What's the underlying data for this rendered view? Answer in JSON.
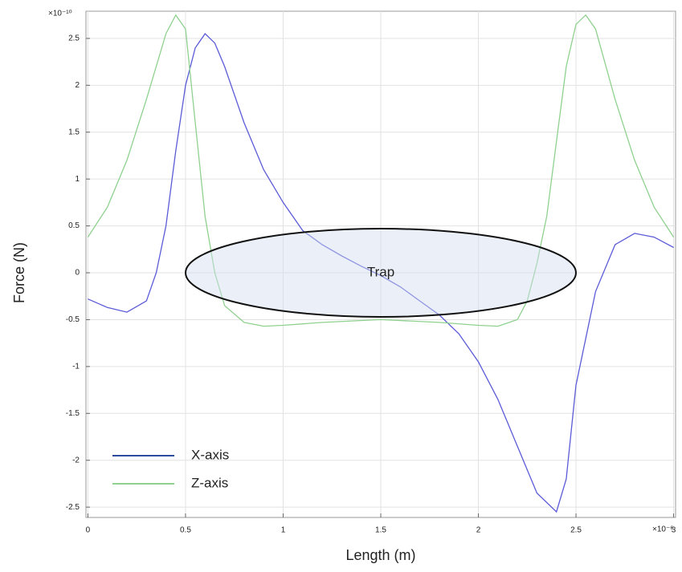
{
  "chart_data": {
    "type": "line",
    "y_label": "Force (N)",
    "x_label": "Length (m)",
    "y_multiplier": "×10⁻¹⁰",
    "x_multiplier": "×10⁻⁶",
    "xlim": [
      -0.01,
      3.01
    ],
    "ylim": [
      -2.61,
      2.79
    ],
    "xticks": [
      0,
      0.5,
      1,
      1.5,
      2,
      2.5,
      3
    ],
    "yticks": [
      -2.5,
      -2,
      -1.5,
      -1,
      -0.5,
      0,
      0.5,
      1,
      1.5,
      2,
      2.5
    ],
    "grid": true,
    "legend": "lower left",
    "annotation": {
      "text": "Trap",
      "x": 1.5,
      "y": 0
    },
    "series": [
      {
        "name": "X-axis",
        "color": "#5b5bd8",
        "x": [
          0,
          0.1,
          0.2,
          0.3,
          0.35,
          0.4,
          0.45,
          0.5,
          0.55,
          0.6,
          0.65,
          0.7,
          0.8,
          0.9,
          1.0,
          1.1,
          1.2,
          1.3,
          1.4,
          1.5,
          1.6,
          1.7,
          1.8,
          1.9,
          2.0,
          2.1,
          2.2,
          2.3,
          2.4,
          2.45,
          2.5,
          2.6,
          2.7,
          2.8,
          2.9,
          3.0
        ],
        "values": [
          -0.28,
          -0.37,
          -0.42,
          -0.3,
          0.0,
          0.5,
          1.3,
          2.0,
          2.4,
          2.55,
          2.45,
          2.2,
          1.6,
          1.1,
          0.75,
          0.45,
          0.3,
          0.18,
          0.07,
          -0.03,
          -0.15,
          -0.3,
          -0.45,
          -0.65,
          -0.95,
          -1.35,
          -1.85,
          -2.35,
          -2.55,
          -2.2,
          -1.2,
          -0.2,
          0.3,
          0.42,
          0.38,
          0.27
        ]
      },
      {
        "name": "Z-axis",
        "color": "#8fd18f",
        "x": [
          0,
          0.1,
          0.2,
          0.3,
          0.4,
          0.45,
          0.5,
          0.55,
          0.6,
          0.65,
          0.7,
          0.8,
          0.9,
          1.0,
          1.2,
          1.5,
          1.8,
          2.0,
          2.1,
          2.2,
          2.25,
          2.3,
          2.35,
          2.4,
          2.45,
          2.5,
          2.55,
          2.6,
          2.7,
          2.8,
          2.9,
          3.0
        ],
        "values": [
          0.38,
          0.7,
          1.2,
          1.85,
          2.55,
          2.75,
          2.6,
          1.6,
          0.6,
          0.0,
          -0.35,
          -0.53,
          -0.57,
          -0.56,
          -0.53,
          -0.5,
          -0.53,
          -0.56,
          -0.57,
          -0.5,
          -0.3,
          0.1,
          0.6,
          1.4,
          2.2,
          2.65,
          2.75,
          2.6,
          1.85,
          1.2,
          0.7,
          0.38
        ]
      }
    ]
  }
}
